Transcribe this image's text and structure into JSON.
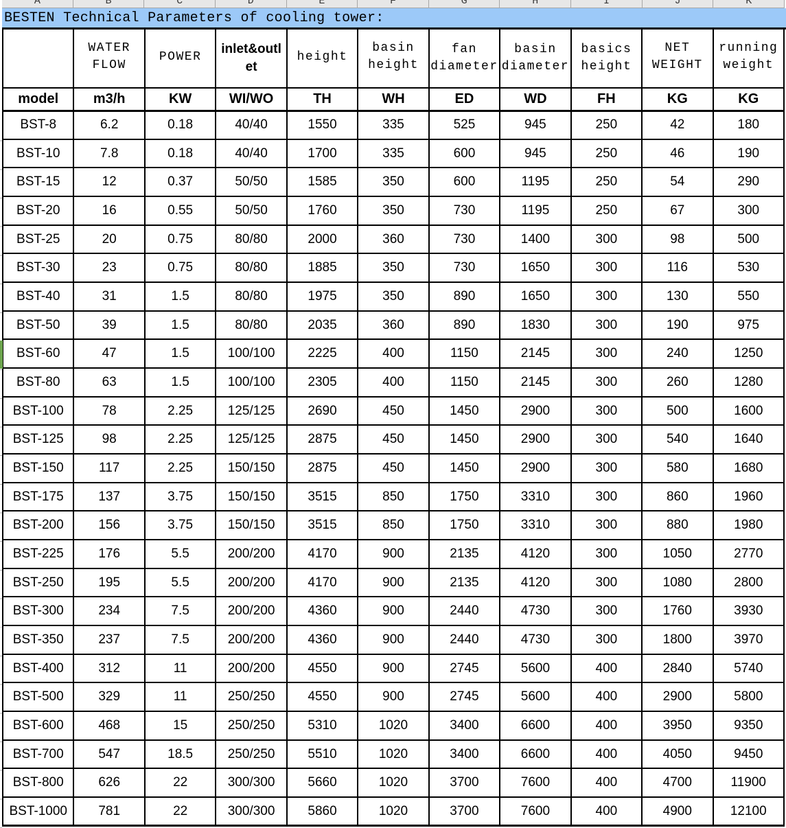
{
  "colors": {
    "title_bar_bg": "#9cc9f8",
    "selection_indicator": "#6ca44d",
    "column_strip_bg": "#e7e7e7",
    "grid_line": "#000000"
  },
  "column_letters": [
    "A",
    "B",
    "C",
    "D",
    "E",
    "F",
    "G",
    "H",
    "I",
    "J",
    "K"
  ],
  "title": "BESTEN Technical Parameters of cooling tower:",
  "table": {
    "header_row1": {
      "water_flow": "WATER\nFLOW",
      "power": "POWER",
      "inlet_outlet": "inlet&outl\net",
      "height": "height",
      "basin_height": "basin\nheight",
      "fan_top": "fan",
      "fan_bottom": "diameter",
      "basin_top": "basin",
      "basin_bottom": "diameter",
      "basics_top": "basics",
      "basics_bottom": "height",
      "net_weight": "NET\nWEIGHT",
      "running_weight": "running\nweight"
    },
    "header_row2": [
      "model",
      "m3/h",
      "KW",
      "WI/WO",
      "TH",
      "WH",
      "ED",
      "WD",
      "FH",
      "KG",
      "KG"
    ],
    "rows": [
      [
        "BST-8",
        "6.2",
        "0.18",
        "40/40",
        "1550",
        "335",
        "525",
        "945",
        "250",
        "42",
        "180"
      ],
      [
        "BST-10",
        "7.8",
        "0.18",
        "40/40",
        "1700",
        "335",
        "600",
        "945",
        "250",
        "46",
        "190"
      ],
      [
        "BST-15",
        "12",
        "0.37",
        "50/50",
        "1585",
        "350",
        "600",
        "1195",
        "250",
        "54",
        "290"
      ],
      [
        "BST-20",
        "16",
        "0.55",
        "50/50",
        "1760",
        "350",
        "730",
        "1195",
        "250",
        "67",
        "300"
      ],
      [
        "BST-25",
        "20",
        "0.75",
        "80/80",
        "2000",
        "360",
        "730",
        "1400",
        "300",
        "98",
        "500"
      ],
      [
        "BST-30",
        "23",
        "0.75",
        "80/80",
        "1885",
        "350",
        "730",
        "1650",
        "300",
        "116",
        "530"
      ],
      [
        "BST-40",
        "31",
        "1.5",
        "80/80",
        "1975",
        "350",
        "890",
        "1650",
        "300",
        "130",
        "550"
      ],
      [
        "BST-50",
        "39",
        "1.5",
        "80/80",
        "2035",
        "360",
        "890",
        "1830",
        "300",
        "190",
        "975"
      ],
      [
        "BST-60",
        "47",
        "1.5",
        "100/100",
        "2225",
        "400",
        "1150",
        "2145",
        "300",
        "240",
        "1250"
      ],
      [
        "BST-80",
        "63",
        "1.5",
        "100/100",
        "2305",
        "400",
        "1150",
        "2145",
        "300",
        "260",
        "1280"
      ],
      [
        "BST-100",
        "78",
        "2.25",
        "125/125",
        "2690",
        "450",
        "1450",
        "2900",
        "300",
        "500",
        "1600"
      ],
      [
        "BST-125",
        "98",
        "2.25",
        "125/125",
        "2875",
        "450",
        "1450",
        "2900",
        "300",
        "540",
        "1640"
      ],
      [
        "BST-150",
        "117",
        "2.25",
        "150/150",
        "2875",
        "450",
        "1450",
        "2900",
        "300",
        "580",
        "1680"
      ],
      [
        "BST-175",
        "137",
        "3.75",
        "150/150",
        "3515",
        "850",
        "1750",
        "3310",
        "300",
        "860",
        "1960"
      ],
      [
        "BST-200",
        "156",
        "3.75",
        "150/150",
        "3515",
        "850",
        "1750",
        "3310",
        "300",
        "880",
        "1980"
      ],
      [
        "BST-225",
        "176",
        "5.5",
        "200/200",
        "4170",
        "900",
        "2135",
        "4120",
        "300",
        "1050",
        "2770"
      ],
      [
        "BST-250",
        "195",
        "5.5",
        "200/200",
        "4170",
        "900",
        "2135",
        "4120",
        "300",
        "1080",
        "2800"
      ],
      [
        "BST-300",
        "234",
        "7.5",
        "200/200",
        "4360",
        "900",
        "2440",
        "4730",
        "300",
        "1760",
        "3930"
      ],
      [
        "BST-350",
        "237",
        "7.5",
        "200/200",
        "4360",
        "900",
        "2440",
        "4730",
        "300",
        "1800",
        "3970"
      ],
      [
        "BST-400",
        "312",
        "11",
        "200/200",
        "4550",
        "900",
        "2745",
        "5600",
        "400",
        "2840",
        "5740"
      ],
      [
        "BST-500",
        "329",
        "11",
        "250/250",
        "4550",
        "900",
        "2745",
        "5600",
        "400",
        "2900",
        "5800"
      ],
      [
        "BST-600",
        "468",
        "15",
        "250/250",
        "5310",
        "1020",
        "3400",
        "6600",
        "400",
        "3950",
        "9350"
      ],
      [
        "BST-700",
        "547",
        "18.5",
        "250/250",
        "5510",
        "1020",
        "3400",
        "6600",
        "400",
        "4050",
        "9450"
      ],
      [
        "BST-800",
        "626",
        "22",
        "300/300",
        "5660",
        "1020",
        "3700",
        "7600",
        "400",
        "4700",
        "11900"
      ],
      [
        "BST-1000",
        "781",
        "22",
        "300/300",
        "5860",
        "1020",
        "3700",
        "7600",
        "400",
        "4900",
        "12100"
      ]
    ]
  }
}
